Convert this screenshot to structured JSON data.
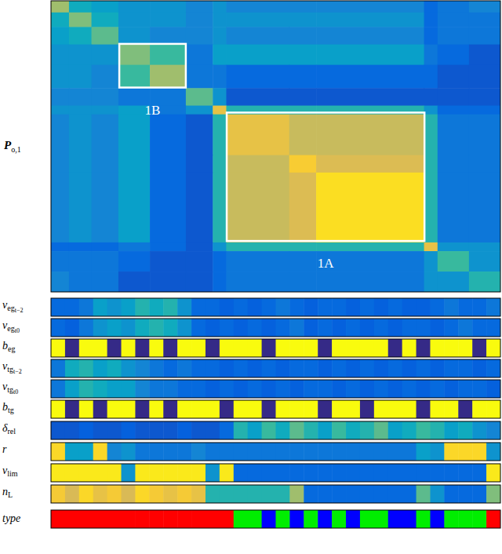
{
  "chart_data": {
    "type": "heatmap",
    "tick_labels": false,
    "matrix": {
      "label": "P",
      "label_sub": "o,1",
      "xlim": [
        0,
        1
      ],
      "ylim": [
        0,
        1
      ],
      "color_range": [
        0,
        1
      ],
      "edges": [
        0,
        0.04,
        0.09,
        0.15,
        0.22,
        0.3,
        0.36,
        0.39,
        0.53,
        0.59,
        0.83,
        0.86,
        0.93,
        1.0
      ],
      "cells": [
        [
          0.65,
          0.4,
          0.35,
          0.3,
          0.3,
          0.25,
          0.3,
          0.25,
          0.25,
          0.25,
          0.15,
          0.2,
          0.25
        ],
        [
          0.4,
          0.6,
          0.4,
          0.3,
          0.3,
          0.25,
          0.3,
          0.3,
          0.3,
          0.3,
          0.15,
          0.2,
          0.2
        ],
        [
          0.35,
          0.4,
          0.55,
          0.3,
          0.25,
          0.25,
          0.3,
          0.25,
          0.25,
          0.25,
          0.15,
          0.2,
          0.2
        ],
        [
          0.3,
          0.3,
          0.3,
          0.6,
          0.5,
          0.2,
          0.35,
          0.35,
          0.35,
          0.35,
          0.2,
          0.15,
          0.1
        ],
        [
          0.3,
          0.3,
          0.25,
          0.5,
          0.65,
          0.2,
          0.2,
          0.15,
          0.15,
          0.15,
          0.15,
          0.1,
          0.1
        ],
        [
          0.25,
          0.25,
          0.25,
          0.2,
          0.2,
          0.55,
          0.3,
          0.1,
          0.1,
          0.1,
          0.1,
          0.1,
          0.1
        ],
        [
          0.3,
          0.3,
          0.3,
          0.35,
          0.2,
          0.3,
          0.8,
          0.45,
          0.45,
          0.45,
          0.3,
          0.15,
          0.15
        ],
        [
          0.25,
          0.3,
          0.25,
          0.35,
          0.15,
          0.1,
          0.45,
          0.8,
          0.72,
          0.72,
          0.45,
          0.2,
          0.2
        ],
        [
          0.25,
          0.3,
          0.25,
          0.35,
          0.15,
          0.1,
          0.45,
          0.72,
          0.86,
          0.76,
          0.45,
          0.2,
          0.2
        ],
        [
          0.25,
          0.3,
          0.25,
          0.35,
          0.15,
          0.1,
          0.45,
          0.72,
          0.76,
          0.92,
          0.45,
          0.2,
          0.2
        ],
        [
          0.15,
          0.15,
          0.15,
          0.2,
          0.15,
          0.1,
          0.3,
          0.45,
          0.45,
          0.45,
          0.8,
          0.3,
          0.3
        ],
        [
          0.2,
          0.2,
          0.2,
          0.15,
          0.1,
          0.1,
          0.15,
          0.2,
          0.2,
          0.2,
          0.3,
          0.5,
          0.3
        ],
        [
          0.25,
          0.2,
          0.2,
          0.1,
          0.1,
          0.1,
          0.15,
          0.2,
          0.2,
          0.2,
          0.3,
          0.3,
          0.45
        ]
      ]
    },
    "annotations": [
      {
        "text": "1B",
        "x": [
          0.152,
          0.3
        ],
        "y": [
          0.148,
          0.298
        ]
      },
      {
        "text": "1A",
        "x": [
          0.391,
          0.831
        ],
        "y": [
          0.384,
          0.825
        ]
      }
    ],
    "stripes": [
      {
        "label": "v",
        "sub": "eg",
        "subsub": "t−2",
        "values": [
          0.15,
          0.15,
          0.2,
          0.35,
          0.3,
          0.35,
          0.45,
          0.4,
          0.45,
          0.3,
          0.15,
          0.15,
          0.12,
          0.15,
          0.12,
          0.15,
          0.2,
          0.15,
          0.12,
          0.15,
          0.15,
          0.12,
          0.15,
          0.12,
          0.15,
          0.12,
          0.12,
          0.15,
          0.2,
          0.15,
          0.15,
          0.2
        ]
      },
      {
        "label": "v",
        "sub": "eg",
        "subsub": "t0",
        "values": [
          0.15,
          0.12,
          0.2,
          0.3,
          0.35,
          0.3,
          0.4,
          0.45,
          0.4,
          0.3,
          0.15,
          0.12,
          0.15,
          0.12,
          0.15,
          0.12,
          0.15,
          0.2,
          0.12,
          0.15,
          0.12,
          0.15,
          0.12,
          0.15,
          0.12,
          0.15,
          0.15,
          0.12,
          0.15,
          0.2,
          0.15,
          0.15
        ]
      },
      {
        "label": "b",
        "sub": "eg",
        "values": [
          1,
          0,
          1,
          1,
          0,
          1,
          0,
          1,
          0,
          1,
          1,
          0,
          1,
          1,
          1,
          0,
          1,
          1,
          1,
          0,
          1,
          1,
          1,
          1,
          0,
          1,
          0,
          1,
          1,
          1,
          0,
          1
        ]
      },
      {
        "label": "v",
        "sub": "tg",
        "subsub": "t−2",
        "values": [
          0.2,
          0.4,
          0.45,
          0.35,
          0.4,
          0.3,
          0.25,
          0.2,
          0.15,
          0.2,
          0.15,
          0.15,
          0.12,
          0.15,
          0.12,
          0.15,
          0.12,
          0.15,
          0.15,
          0.12,
          0.15,
          0.12,
          0.15,
          0.12,
          0.15,
          0.12,
          0.15,
          0.12,
          0.15,
          0.15,
          0.12,
          0.15
        ]
      },
      {
        "label": "v",
        "sub": "tg",
        "subsub": "t0",
        "values": [
          0.2,
          0.35,
          0.45,
          0.4,
          0.35,
          0.35,
          0.25,
          0.2,
          0.2,
          0.15,
          0.15,
          0.12,
          0.15,
          0.12,
          0.15,
          0.12,
          0.15,
          0.12,
          0.15,
          0.15,
          0.12,
          0.15,
          0.12,
          0.15,
          0.12,
          0.15,
          0.12,
          0.15,
          0.12,
          0.15,
          0.15,
          0.12
        ]
      },
      {
        "label": "b",
        "sub": "tg",
        "values": [
          1,
          0,
          1,
          0,
          1,
          1,
          0,
          1,
          0,
          1,
          1,
          1,
          0,
          1,
          1,
          0,
          1,
          1,
          1,
          0,
          1,
          1,
          0,
          1,
          1,
          1,
          0,
          1,
          1,
          0,
          1,
          1
        ]
      },
      {
        "label": "δ",
        "sub": "rel",
        "values": [
          0.1,
          0.1,
          0.12,
          0.1,
          0.1,
          0.12,
          0.1,
          0.1,
          0.1,
          0.12,
          0.1,
          0.1,
          0.15,
          0.45,
          0.35,
          0.5,
          0.4,
          0.55,
          0.45,
          0.35,
          0.5,
          0.4,
          0.45,
          0.55,
          0.35,
          0.4,
          0.5,
          0.45,
          0.35,
          0.4,
          0.3,
          0.25
        ]
      },
      {
        "label": "r",
        "values": [
          0.9,
          0.35,
          0.35,
          0.9,
          0.25,
          0.3,
          0.2,
          0.2,
          0.2,
          0.2,
          0.25,
          0.2,
          0.2,
          0.2,
          0.2,
          0.2,
          0.2,
          0.2,
          0.2,
          0.2,
          0.2,
          0.2,
          0.2,
          0.2,
          0.2,
          0.2,
          0.35,
          0.3,
          0.9,
          0.9,
          0.9,
          0.3
        ]
      },
      {
        "label": "v",
        "sub": "lim",
        "values": [
          0.95,
          0.95,
          0.95,
          0.95,
          0.95,
          0.3,
          0.95,
          0.95,
          0.95,
          0.95,
          0.95,
          0.3,
          0.95,
          0.15,
          0.15,
          0.15,
          0.15,
          0.15,
          0.15,
          0.15,
          0.15,
          0.15,
          0.15,
          0.15,
          0.15,
          0.15,
          0.15,
          0.15,
          0.15,
          0.15,
          0.15,
          0.95
        ]
      },
      {
        "label": "n",
        "sub": "L",
        "values": [
          0.85,
          0.75,
          0.9,
          0.8,
          0.85,
          0.75,
          0.9,
          0.85,
          0.8,
          0.85,
          0.8,
          0.45,
          0.45,
          0.45,
          0.45,
          0.45,
          0.45,
          0.65,
          0.15,
          0.15,
          0.15,
          0.15,
          0.15,
          0.15,
          0.15,
          0.15,
          0.55,
          0.3,
          0.15,
          0.15,
          0.15,
          0.6
        ]
      }
    ],
    "type_stripe": {
      "label": "type",
      "colors": [
        "#ff0000",
        "#00ee00",
        "#0000ff"
      ],
      "values": [
        1,
        1,
        1,
        1,
        1,
        1,
        1,
        1,
        1,
        1,
        1,
        1,
        1,
        2,
        2,
        3,
        2,
        3,
        2,
        3,
        2,
        3,
        2,
        2,
        3,
        3,
        2,
        3,
        2,
        2,
        2,
        1
      ]
    }
  }
}
